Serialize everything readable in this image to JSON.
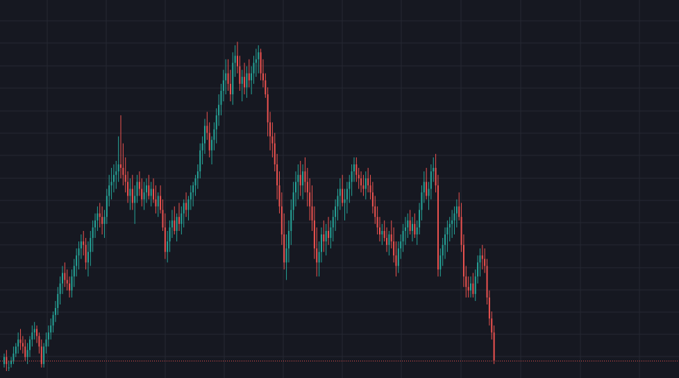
{
  "theme": {
    "background": "#161821",
    "grid": "#252833",
    "up_color": "#26a69a",
    "down_color": "#ef5350",
    "price_line_color": "#ef5350"
  },
  "chart_data": {
    "type": "candlestick",
    "title": "",
    "xlabel": "",
    "ylabel": "",
    "grid": true,
    "axes_visible": false,
    "ylim": [
      0,
      100
    ],
    "last_price": 4,
    "price_line_style": "dotted",
    "series": [
      {
        "ohlc": [
          [
            3,
            6,
            2,
            5
          ],
          [
            5,
            7,
            1,
            3
          ],
          [
            2,
            4,
            1,
            2
          ],
          [
            3,
            5,
            2,
            4
          ],
          [
            4,
            8,
            3,
            6
          ],
          [
            6,
            9,
            5,
            8
          ],
          [
            8,
            12,
            6,
            10
          ],
          [
            10,
            13,
            7,
            9
          ],
          [
            9,
            11,
            6,
            8
          ],
          [
            8,
            10,
            4,
            5
          ],
          [
            5,
            9,
            3,
            7
          ],
          [
            7,
            11,
            5,
            10
          ],
          [
            10,
            14,
            8,
            12
          ],
          [
            12,
            15,
            10,
            13
          ],
          [
            13,
            14,
            9,
            11
          ],
          [
            11,
            12,
            6,
            8
          ],
          [
            8,
            10,
            2,
            3
          ],
          [
            3,
            9,
            2,
            8
          ],
          [
            8,
            12,
            6,
            10
          ],
          [
            10,
            14,
            8,
            12
          ],
          [
            12,
            16,
            10,
            14
          ],
          [
            14,
            18,
            12,
            17
          ],
          [
            17,
            21,
            15,
            19
          ],
          [
            19,
            25,
            17,
            23
          ],
          [
            23,
            28,
            20,
            26
          ],
          [
            26,
            31,
            23,
            29
          ],
          [
            29,
            32,
            25,
            27
          ],
          [
            27,
            30,
            24,
            26
          ],
          [
            26,
            28,
            22,
            24
          ],
          [
            24,
            30,
            22,
            28
          ],
          [
            28,
            33,
            25,
            31
          ],
          [
            31,
            36,
            28,
            34
          ],
          [
            34,
            38,
            30,
            36
          ],
          [
            36,
            40,
            33,
            38
          ],
          [
            38,
            41,
            34,
            37
          ],
          [
            37,
            39,
            30,
            32
          ],
          [
            32,
            38,
            28,
            35
          ],
          [
            35,
            41,
            31,
            39
          ],
          [
            39,
            44,
            35,
            42
          ],
          [
            42,
            46,
            39,
            44
          ],
          [
            44,
            48,
            41,
            46
          ],
          [
            46,
            49,
            42,
            45
          ],
          [
            45,
            48,
            40,
            43
          ],
          [
            43,
            47,
            39,
            45
          ],
          [
            45,
            53,
            43,
            51
          ],
          [
            51,
            57,
            48,
            54
          ],
          [
            54,
            59,
            50,
            55
          ],
          [
            55,
            60,
            52,
            57
          ],
          [
            57,
            61,
            53,
            58
          ],
          [
            58,
            68,
            55,
            60
          ],
          [
            60,
            74,
            56,
            59
          ],
          [
            59,
            66,
            54,
            57
          ],
          [
            57,
            62,
            52,
            55
          ],
          [
            55,
            58,
            49,
            51
          ],
          [
            51,
            56,
            47,
            53
          ],
          [
            53,
            57,
            47,
            49
          ],
          [
            49,
            54,
            43,
            51
          ],
          [
            51,
            57,
            49,
            55
          ],
          [
            55,
            58,
            51,
            53
          ],
          [
            53,
            56,
            48,
            50
          ],
          [
            50,
            55,
            47,
            52
          ],
          [
            52,
            56,
            49,
            54
          ],
          [
            54,
            57,
            50,
            51
          ],
          [
            51,
            55,
            48,
            53
          ],
          [
            53,
            56,
            49,
            50
          ],
          [
            50,
            54,
            46,
            48
          ],
          [
            48,
            52,
            45,
            51
          ],
          [
            51,
            54,
            46,
            47
          ],
          [
            47,
            50,
            41,
            42
          ],
          [
            42,
            46,
            33,
            35
          ],
          [
            35,
            41,
            32,
            38
          ],
          [
            38,
            44,
            35,
            42
          ],
          [
            42,
            47,
            39,
            44
          ],
          [
            44,
            48,
            40,
            41
          ],
          [
            41,
            46,
            38,
            45
          ],
          [
            45,
            49,
            41,
            43
          ],
          [
            43,
            48,
            40,
            46
          ],
          [
            46,
            50,
            42,
            49
          ],
          [
            49,
            52,
            45,
            47
          ],
          [
            47,
            51,
            44,
            50
          ],
          [
            50,
            54,
            47,
            52
          ],
          [
            52,
            55,
            48,
            54
          ],
          [
            54,
            57,
            51,
            56
          ],
          [
            56,
            60,
            53,
            58
          ],
          [
            58,
            66,
            56,
            64
          ],
          [
            64,
            68,
            60,
            66
          ],
          [
            66,
            73,
            63,
            71
          ],
          [
            71,
            75,
            67,
            69
          ],
          [
            69,
            72,
            62,
            64
          ],
          [
            64,
            68,
            60,
            67
          ],
          [
            67,
            72,
            64,
            70
          ],
          [
            70,
            76,
            66,
            74
          ],
          [
            74,
            80,
            71,
            77
          ],
          [
            77,
            83,
            74,
            81
          ],
          [
            81,
            87,
            78,
            84
          ],
          [
            84,
            90,
            80,
            86
          ],
          [
            86,
            90,
            81,
            83
          ],
          [
            83,
            87,
            78,
            80
          ],
          [
            80,
            92,
            77,
            89
          ],
          [
            89,
            94,
            85,
            91
          ],
          [
            91,
            95,
            86,
            88
          ],
          [
            88,
            91,
            81,
            83
          ],
          [
            83,
            87,
            78,
            85
          ],
          [
            85,
            89,
            80,
            82
          ],
          [
            82,
            88,
            79,
            86
          ],
          [
            86,
            90,
            82,
            84
          ],
          [
            84,
            88,
            80,
            86
          ],
          [
            86,
            91,
            83,
            89
          ],
          [
            89,
            93,
            85,
            90
          ],
          [
            90,
            94,
            86,
            92
          ],
          [
            92,
            93,
            84,
            86
          ],
          [
            86,
            90,
            82,
            84
          ],
          [
            84,
            86,
            79,
            80
          ],
          [
            80,
            82,
            68,
            72
          ],
          [
            72,
            75,
            64,
            68
          ],
          [
            68,
            72,
            62,
            66
          ],
          [
            66,
            69,
            58,
            60
          ],
          [
            60,
            63,
            50,
            54
          ],
          [
            54,
            58,
            46,
            48
          ],
          [
            48,
            52,
            37,
            40
          ],
          [
            40,
            46,
            30,
            32
          ],
          [
            32,
            40,
            27,
            36
          ],
          [
            36,
            44,
            32,
            41
          ],
          [
            41,
            50,
            37,
            47
          ],
          [
            47,
            55,
            44,
            52
          ],
          [
            52,
            58,
            48,
            55
          ],
          [
            55,
            60,
            50,
            57
          ],
          [
            57,
            61,
            51,
            54
          ],
          [
            54,
            60,
            50,
            58
          ],
          [
            58,
            62,
            52,
            55
          ],
          [
            55,
            59,
            48,
            52
          ],
          [
            52,
            56,
            44,
            48
          ],
          [
            48,
            54,
            41,
            44
          ],
          [
            44,
            48,
            33,
            36
          ],
          [
            36,
            42,
            28,
            32
          ],
          [
            32,
            38,
            28,
            35
          ],
          [
            35,
            42,
            32,
            40
          ],
          [
            40,
            44,
            35,
            38
          ],
          [
            38,
            43,
            34,
            41
          ],
          [
            41,
            45,
            37,
            39
          ],
          [
            39,
            44,
            36,
            42
          ],
          [
            42,
            47,
            38,
            45
          ],
          [
            45,
            50,
            41,
            48
          ],
          [
            48,
            53,
            44,
            51
          ],
          [
            51,
            56,
            47,
            53
          ],
          [
            53,
            57,
            48,
            49
          ],
          [
            49,
            53,
            44,
            50
          ],
          [
            50,
            55,
            46,
            53
          ],
          [
            53,
            57,
            49,
            55
          ],
          [
            55,
            60,
            51,
            58
          ],
          [
            58,
            62,
            55,
            60
          ],
          [
            60,
            62,
            55,
            57
          ],
          [
            57,
            59,
            53,
            56
          ],
          [
            56,
            58,
            52,
            54
          ],
          [
            54,
            57,
            51,
            53
          ],
          [
            53,
            58,
            50,
            56
          ],
          [
            56,
            59,
            52,
            54
          ],
          [
            54,
            57,
            50,
            52
          ],
          [
            52,
            55,
            46,
            48
          ],
          [
            48,
            51,
            43,
            45
          ],
          [
            45,
            48,
            40,
            42
          ],
          [
            42,
            45,
            38,
            40
          ],
          [
            40,
            43,
            37,
            41
          ],
          [
            41,
            44,
            38,
            39
          ],
          [
            39,
            42,
            35,
            37
          ],
          [
            37,
            41,
            34,
            40
          ],
          [
            40,
            44,
            36,
            38
          ],
          [
            38,
            42,
            32,
            34
          ],
          [
            34,
            38,
            28,
            31
          ],
          [
            31,
            38,
            29,
            36
          ],
          [
            36,
            40,
            33,
            38
          ],
          [
            38,
            43,
            35,
            41
          ],
          [
            41,
            45,
            37,
            42
          ],
          [
            42,
            46,
            39,
            44
          ],
          [
            44,
            47,
            40,
            41
          ],
          [
            41,
            45,
            38,
            43
          ],
          [
            43,
            46,
            39,
            40
          ],
          [
            40,
            44,
            37,
            42
          ],
          [
            42,
            49,
            40,
            47
          ],
          [
            47,
            54,
            44,
            52
          ],
          [
            52,
            58,
            49,
            55
          ],
          [
            55,
            59,
            50,
            51
          ],
          [
            51,
            55,
            47,
            53
          ],
          [
            53,
            60,
            50,
            58
          ],
          [
            58,
            62,
            55,
            59
          ],
          [
            59,
            63,
            52,
            54
          ],
          [
            54,
            57,
            28,
            30
          ],
          [
            30,
            36,
            28,
            34
          ],
          [
            34,
            39,
            31,
            37
          ],
          [
            37,
            42,
            33,
            40
          ],
          [
            40,
            44,
            35,
            42
          ],
          [
            42,
            45,
            38,
            43
          ],
          [
            43,
            47,
            39,
            44
          ],
          [
            44,
            48,
            40,
            46
          ],
          [
            46,
            50,
            42,
            48
          ],
          [
            48,
            52,
            44,
            45
          ],
          [
            45,
            49,
            35,
            37
          ],
          [
            37,
            40,
            25,
            28
          ],
          [
            28,
            31,
            22,
            25
          ],
          [
            25,
            28,
            22,
            24
          ],
          [
            24,
            28,
            22,
            26
          ],
          [
            26,
            29,
            22,
            23
          ],
          [
            23,
            30,
            21,
            28
          ],
          [
            28,
            34,
            26,
            32
          ],
          [
            32,
            36,
            28,
            34
          ],
          [
            34,
            37,
            30,
            33
          ],
          [
            33,
            36,
            29,
            31
          ],
          [
            31,
            33,
            20,
            22
          ],
          [
            22,
            24,
            14,
            16
          ],
          [
            16,
            18,
            10,
            12
          ],
          [
            12,
            14,
            3,
            4
          ]
        ]
      }
    ]
  }
}
